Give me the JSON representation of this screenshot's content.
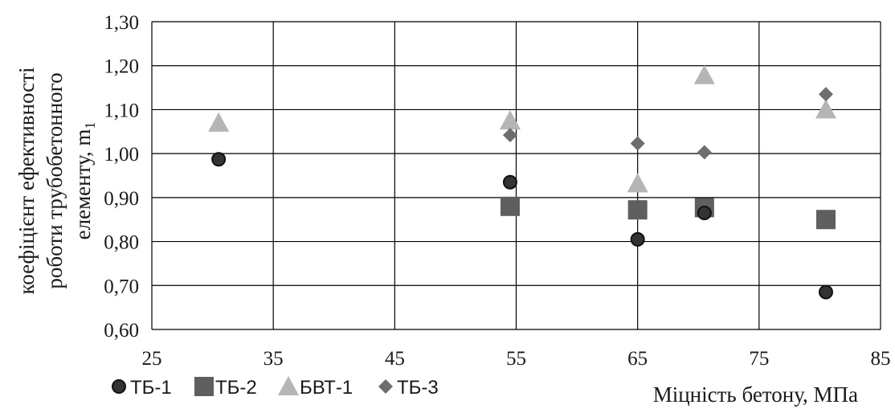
{
  "chart_data": {
    "type": "scatter",
    "title": "",
    "xlabel": "Міцність бетону,  МПа",
    "ylabel_lines": [
      "коефіцієнт  ефективності",
      "роботи трубобетонного",
      "елементу, m"
    ],
    "ylabel_subscript": "1",
    "xlim": [
      25,
      85
    ],
    "ylim": [
      0.6,
      1.3
    ],
    "x_ticks": [
      25,
      35,
      45,
      55,
      65,
      75,
      85
    ],
    "y_ticks": [
      0.6,
      0.7,
      0.8,
      0.9,
      1.0,
      1.1,
      1.2,
      1.3
    ],
    "y_tick_labels": [
      "0,60",
      "0,70",
      "0,80",
      "0,90",
      "1,00",
      "1,10",
      "1,20",
      "1,30"
    ],
    "x_tick_labels": [
      "25",
      "35",
      "45",
      "55",
      "65",
      "75",
      "85"
    ],
    "grid": true,
    "legend_position": "bottom-left",
    "series": [
      {
        "name": "ТБ-1",
        "marker": "circle",
        "color": "#333333",
        "points": [
          [
            30.5,
            0.987
          ],
          [
            54.5,
            0.935
          ],
          [
            65.0,
            0.805
          ],
          [
            70.5,
            0.865
          ],
          [
            80.5,
            0.685
          ]
        ]
      },
      {
        "name": "ТБ-2",
        "marker": "square",
        "color": "#5f5f5f",
        "points": [
          [
            54.5,
            0.88
          ],
          [
            65.0,
            0.872
          ],
          [
            70.5,
            0.877
          ],
          [
            80.5,
            0.85
          ]
        ]
      },
      {
        "name": "БВТ-1",
        "marker": "triangle",
        "color": "#b5b5b5",
        "points": [
          [
            30.5,
            1.07
          ],
          [
            54.5,
            1.075
          ],
          [
            65.0,
            0.932
          ],
          [
            70.5,
            1.178
          ],
          [
            80.5,
            1.1
          ]
        ]
      },
      {
        "name": "ТБ-3",
        "marker": "diamond",
        "color": "#6e6e6e",
        "points": [
          [
            54.5,
            1.042
          ],
          [
            65.0,
            1.023
          ],
          [
            70.5,
            1.003
          ],
          [
            80.5,
            1.135
          ]
        ]
      }
    ]
  }
}
